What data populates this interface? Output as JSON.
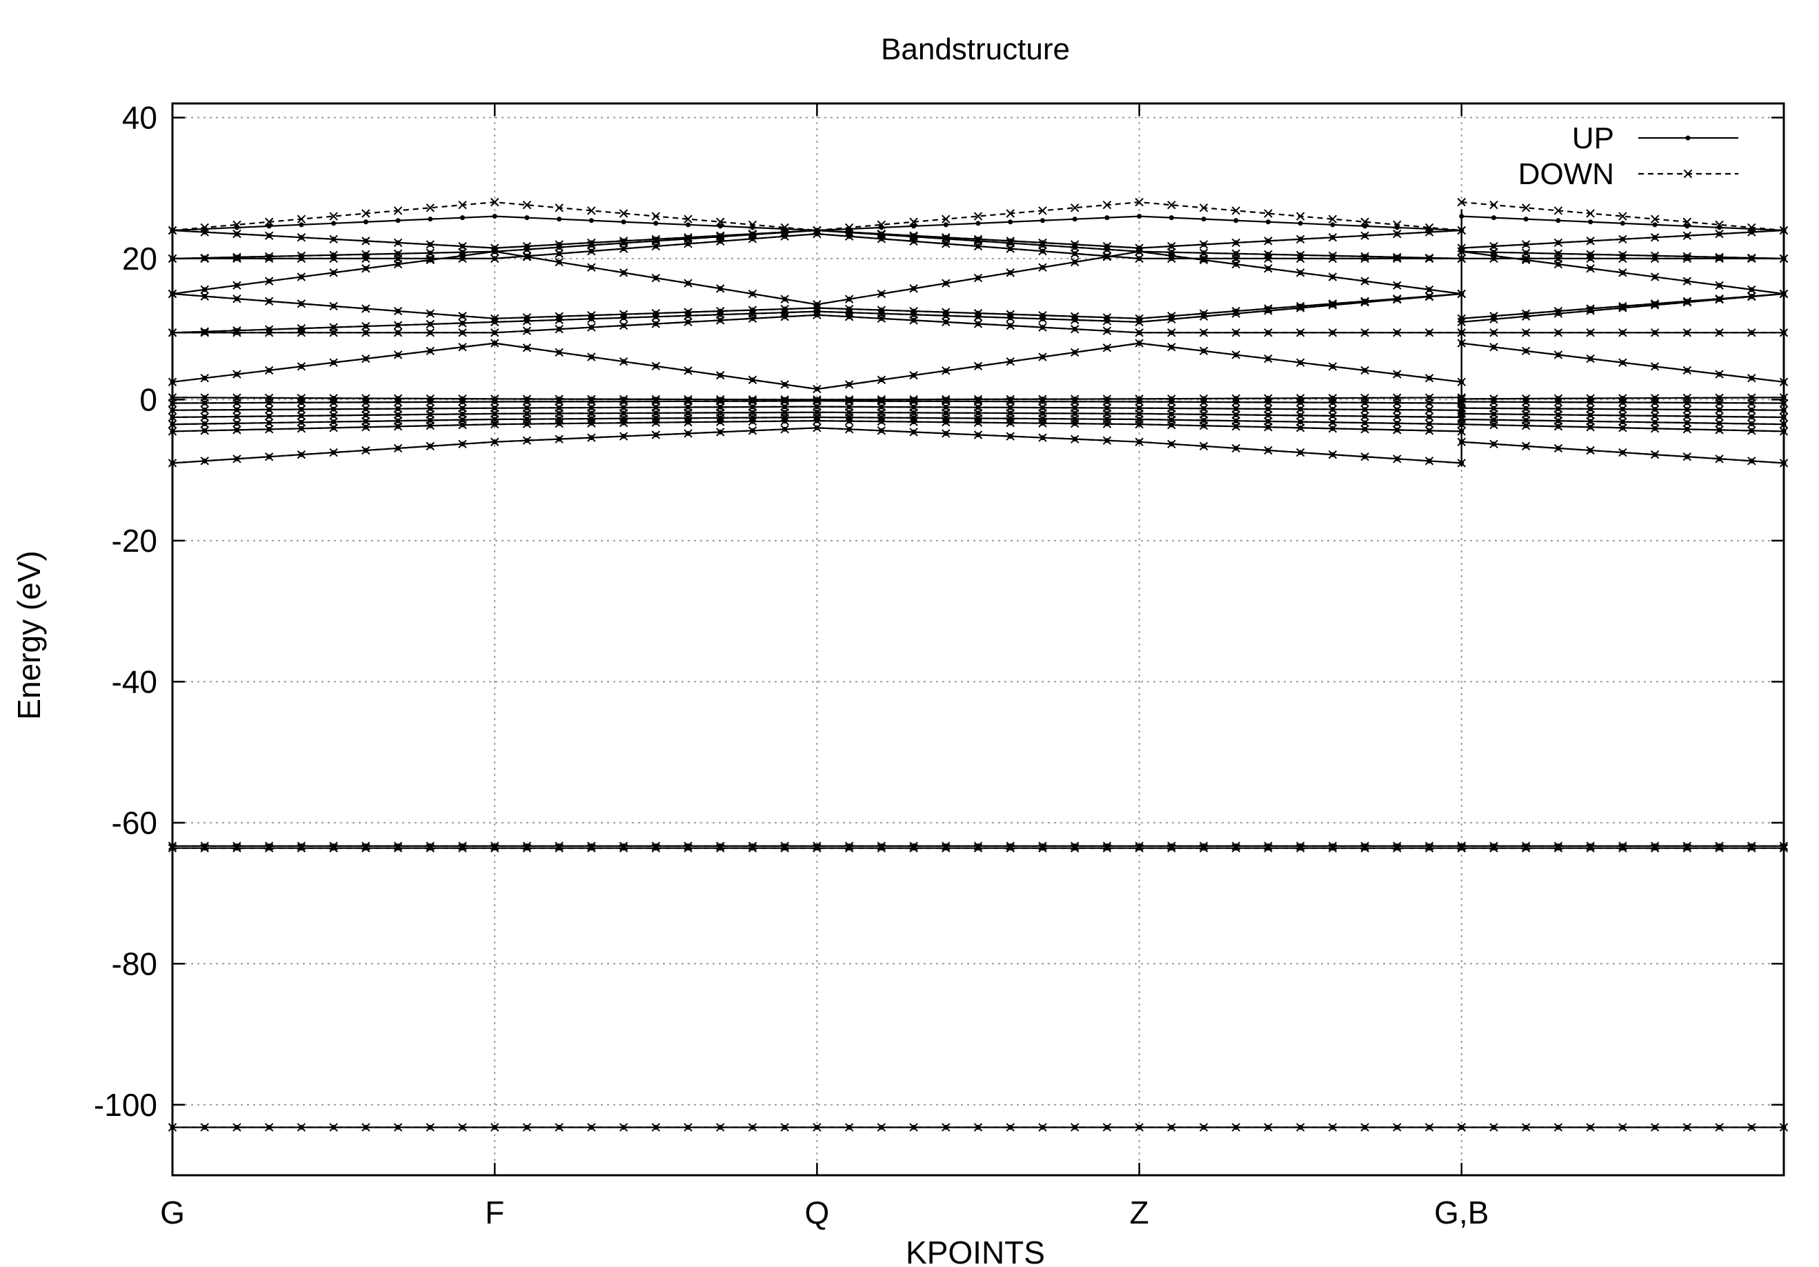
{
  "chart_data": {
    "type": "line",
    "title": "Bandstructure",
    "xlabel": "KPOINTS",
    "ylabel": "Energy (eV)",
    "ylim": [
      -110,
      42
    ],
    "xlim": [
      0,
      5
    ],
    "grid": true,
    "legend_position": "top-right",
    "x_ticks": [
      {
        "x": 0,
        "label": "G"
      },
      {
        "x": 1,
        "label": "F"
      },
      {
        "x": 2,
        "label": "Q"
      },
      {
        "x": 3,
        "label": "Z"
      },
      {
        "x": 4,
        "label": "G,B"
      }
    ],
    "y_ticks": [
      40,
      20,
      0,
      -20,
      -40,
      -60,
      -80,
      -100
    ],
    "y_tick_labels": [
      "40",
      "20",
      "0",
      "-20",
      "-40",
      "-60",
      "-80",
      "-100"
    ],
    "series": [
      {
        "name": "UP",
        "style": "solid",
        "marker": "dot",
        "bands": [
          {
            "x": [
              0,
              1,
              2,
              3,
              4
            ],
            "y": [
              -103.2,
              -103.2,
              -103.2,
              -103.2,
              -103.2
            ]
          },
          {
            "x": [
              4,
              5
            ],
            "y": [
              -103.2,
              -103.2
            ]
          },
          {
            "x": [
              0,
              1,
              2,
              3,
              4
            ],
            "y": [
              -63.3,
              -63.3,
              -63.3,
              -63.3,
              -63.3
            ]
          },
          {
            "x": [
              4,
              5
            ],
            "y": [
              -63.3,
              -63.3
            ]
          },
          {
            "x": [
              0,
              1,
              2,
              3,
              4
            ],
            "y": [
              -63.6,
              -63.6,
              -63.6,
              -63.6,
              -63.6
            ]
          },
          {
            "x": [
              4,
              5
            ],
            "y": [
              -63.6,
              -63.6
            ]
          },
          {
            "x": [
              0,
              1,
              2,
              3,
              4
            ],
            "y": [
              -9,
              -6,
              -4,
              -6,
              -9
            ]
          },
          {
            "x": [
              4,
              5
            ],
            "y": [
              -6,
              -9
            ]
          },
          {
            "x": [
              0,
              1,
              2,
              3,
              4
            ],
            "y": [
              -4.5,
              -3.5,
              -3,
              -3.5,
              -4.5
            ]
          },
          {
            "x": [
              4,
              5
            ],
            "y": [
              -3.5,
              -4.5
            ]
          },
          {
            "x": [
              0,
              1,
              2,
              3,
              4
            ],
            "y": [
              -3.5,
              -2.8,
              -2.5,
              -2.8,
              -3.5
            ]
          },
          {
            "x": [
              4,
              5
            ],
            "y": [
              -2.8,
              -3.5
            ]
          },
          {
            "x": [
              0,
              1,
              2,
              3,
              4
            ],
            "y": [
              -2.5,
              -2,
              -1.8,
              -2,
              -2.5
            ]
          },
          {
            "x": [
              4,
              5
            ],
            "y": [
              -2,
              -2.5
            ]
          },
          {
            "x": [
              0,
              1,
              2,
              3,
              4
            ],
            "y": [
              -1.5,
              -1.2,
              -1,
              -1.2,
              -1.5
            ]
          },
          {
            "x": [
              4,
              5
            ],
            "y": [
              -1.2,
              -1.5
            ]
          },
          {
            "x": [
              0,
              1,
              2,
              3,
              4
            ],
            "y": [
              -0.5,
              -0.3,
              -0.2,
              -0.3,
              -0.5
            ]
          },
          {
            "x": [
              4,
              5
            ],
            "y": [
              -0.3,
              -0.5
            ]
          },
          {
            "x": [
              0,
              1,
              2,
              3,
              4
            ],
            "y": [
              0.3,
              0.1,
              0,
              0.1,
              0.3
            ]
          },
          {
            "x": [
              4,
              5
            ],
            "y": [
              0.1,
              0.3
            ]
          },
          {
            "x": [
              0,
              1,
              2,
              3,
              4
            ],
            "y": [
              2.5,
              8,
              1.5,
              8,
              2.5
            ]
          },
          {
            "x": [
              4,
              5
            ],
            "y": [
              8,
              2.5
            ]
          },
          {
            "x": [
              0,
              1,
              2,
              3,
              4
            ],
            "y": [
              9.5,
              9.5,
              12,
              9.5,
              9.5
            ]
          },
          {
            "x": [
              4,
              5
            ],
            "y": [
              9.5,
              9.5
            ]
          },
          {
            "x": [
              0,
              1,
              2,
              3,
              4
            ],
            "y": [
              9.5,
              11,
              12.5,
              11,
              15
            ]
          },
          {
            "x": [
              4,
              5
            ],
            "y": [
              11,
              15
            ]
          },
          {
            "x": [
              0,
              1,
              2,
              3,
              4
            ],
            "y": [
              15,
              11.5,
              13,
              11.5,
              15
            ]
          },
          {
            "x": [
              4,
              5
            ],
            "y": [
              11.5,
              15
            ]
          },
          {
            "x": [
              0,
              1,
              2,
              3,
              4
            ],
            "y": [
              15,
              21,
              13.5,
              21,
              15
            ]
          },
          {
            "x": [
              4,
              5
            ],
            "y": [
              21,
              15
            ]
          },
          {
            "x": [
              0,
              1,
              2,
              3,
              4
            ],
            "y": [
              20,
              20,
              23.5,
              20,
              20
            ]
          },
          {
            "x": [
              4,
              5
            ],
            "y": [
              20,
              20
            ]
          },
          {
            "x": [
              0,
              1,
              2,
              3,
              4
            ],
            "y": [
              20,
              21,
              24,
              21,
              20
            ]
          },
          {
            "x": [
              4,
              5
            ],
            "y": [
              21,
              20
            ]
          },
          {
            "x": [
              0,
              1,
              2,
              3,
              4
            ],
            "y": [
              24,
              26,
              24,
              26,
              24
            ]
          },
          {
            "x": [
              4,
              5
            ],
            "y": [
              26,
              24
            ]
          },
          {
            "x": [
              0,
              1,
              2,
              3,
              4
            ],
            "y": [
              24,
              21.5,
              24,
              21.5,
              24
            ]
          },
          {
            "x": [
              4,
              5
            ],
            "y": [
              21.5,
              24
            ]
          }
        ]
      },
      {
        "name": "DOWN",
        "style": "dashed",
        "marker": "x",
        "bands": [
          {
            "x": [
              0,
              1,
              2,
              3,
              4
            ],
            "y": [
              -103.2,
              -103.2,
              -103.2,
              -103.2,
              -103.2
            ]
          },
          {
            "x": [
              4,
              5
            ],
            "y": [
              -103.2,
              -103.2
            ]
          },
          {
            "x": [
              0,
              1,
              2,
              3,
              4
            ],
            "y": [
              -63.3,
              -63.3,
              -63.3,
              -63.3,
              -63.3
            ]
          },
          {
            "x": [
              4,
              5
            ],
            "y": [
              -63.3,
              -63.3
            ]
          },
          {
            "x": [
              0,
              1,
              2,
              3,
              4
            ],
            "y": [
              -63.6,
              -63.6,
              -63.6,
              -63.6,
              -63.6
            ]
          },
          {
            "x": [
              4,
              5
            ],
            "y": [
              -63.6,
              -63.6
            ]
          },
          {
            "x": [
              0,
              1,
              2,
              3,
              4
            ],
            "y": [
              -9,
              -6,
              -4,
              -6,
              -9
            ]
          },
          {
            "x": [
              4,
              5
            ],
            "y": [
              -6,
              -9
            ]
          },
          {
            "x": [
              0,
              1,
              2,
              3,
              4
            ],
            "y": [
              -4.5,
              -3.5,
              -3,
              -3.5,
              -4.5
            ]
          },
          {
            "x": [
              4,
              5
            ],
            "y": [
              -3.5,
              -4.5
            ]
          },
          {
            "x": [
              0,
              1,
              2,
              3,
              4
            ],
            "y": [
              -3.5,
              -2.8,
              -2.5,
              -2.8,
              -3.5
            ]
          },
          {
            "x": [
              4,
              5
            ],
            "y": [
              -2.8,
              -3.5
            ]
          },
          {
            "x": [
              0,
              1,
              2,
              3,
              4
            ],
            "y": [
              -2.5,
              -2,
              -1.8,
              -2,
              -2.5
            ]
          },
          {
            "x": [
              4,
              5
            ],
            "y": [
              -2,
              -2.5
            ]
          },
          {
            "x": [
              0,
              1,
              2,
              3,
              4
            ],
            "y": [
              -1.5,
              -1.2,
              -1,
              -1.2,
              -1.5
            ]
          },
          {
            "x": [
              4,
              5
            ],
            "y": [
              -1.2,
              -1.5
            ]
          },
          {
            "x": [
              0,
              1,
              2,
              3,
              4
            ],
            "y": [
              -0.5,
              -0.3,
              -0.2,
              -0.3,
              -0.5
            ]
          },
          {
            "x": [
              4,
              5
            ],
            "y": [
              -0.3,
              -0.5
            ]
          },
          {
            "x": [
              0,
              1,
              2,
              3,
              4
            ],
            "y": [
              0.3,
              0.1,
              0,
              0.1,
              0.3
            ]
          },
          {
            "x": [
              4,
              5
            ],
            "y": [
              0.1,
              0.3
            ]
          },
          {
            "x": [
              0,
              1,
              2,
              3,
              4
            ],
            "y": [
              2.5,
              8,
              1.5,
              8,
              2.5
            ]
          },
          {
            "x": [
              4,
              5
            ],
            "y": [
              8,
              2.5
            ]
          },
          {
            "x": [
              0,
              1,
              2,
              3,
              4
            ],
            "y": [
              9.5,
              9.5,
              12,
              9.5,
              9.5
            ]
          },
          {
            "x": [
              4,
              5
            ],
            "y": [
              9.5,
              9.5
            ]
          },
          {
            "x": [
              0,
              1,
              2,
              3,
              4
            ],
            "y": [
              9.5,
              11,
              12.5,
              11,
              15
            ]
          },
          {
            "x": [
              4,
              5
            ],
            "y": [
              11,
              15
            ]
          },
          {
            "x": [
              0,
              1,
              2,
              3,
              4
            ],
            "y": [
              15,
              11.5,
              13,
              11.5,
              15
            ]
          },
          {
            "x": [
              4,
              5
            ],
            "y": [
              11.5,
              15
            ]
          },
          {
            "x": [
              0,
              1,
              2,
              3,
              4
            ],
            "y": [
              15,
              21,
              13.5,
              21,
              15
            ]
          },
          {
            "x": [
              4,
              5
            ],
            "y": [
              21,
              15
            ]
          },
          {
            "x": [
              0,
              1,
              2,
              3,
              4
            ],
            "y": [
              20,
              20,
              23.5,
              20,
              20
            ]
          },
          {
            "x": [
              4,
              5
            ],
            "y": [
              20,
              20
            ]
          },
          {
            "x": [
              0,
              1,
              2,
              3,
              4
            ],
            "y": [
              20,
              21,
              24,
              21,
              20
            ]
          },
          {
            "x": [
              4,
              5
            ],
            "y": [
              21,
              20
            ]
          },
          {
            "x": [
              0,
              1,
              2,
              3,
              4
            ],
            "y": [
              24,
              28,
              24,
              28,
              24
            ]
          },
          {
            "x": [
              4,
              5
            ],
            "y": [
              28,
              24
            ]
          },
          {
            "x": [
              0,
              1,
              2,
              3,
              4
            ],
            "y": [
              24,
              21.5,
              24,
              21.5,
              24
            ]
          },
          {
            "x": [
              4,
              5
            ],
            "y": [
              21.5,
              24
            ]
          }
        ]
      }
    ]
  }
}
